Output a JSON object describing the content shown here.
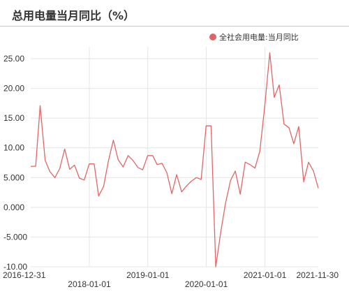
{
  "header": {
    "title": "总用电量当月同比（%）"
  },
  "colors": {
    "series": "#e06666",
    "grid": "#e4e4e4",
    "axis_text": "#333333"
  },
  "chart_data": {
    "type": "line",
    "title": "总用电量当月同比（%）",
    "xlabel": "",
    "ylabel": "",
    "ylim": [
      -10,
      27
    ],
    "grid": true,
    "legend_position": "top-right",
    "y_ticks": [
      "25.00",
      "20.00",
      "15.00",
      "10.00",
      "5.000",
      "0.000",
      "-5.000",
      "-10.00"
    ],
    "x_ticks": [
      {
        "label": "2016-12-31",
        "row": 0
      },
      {
        "label": "2018-01-01",
        "row": 1
      },
      {
        "label": "2019-01-01",
        "row": 0
      },
      {
        "label": "2020-01-01",
        "row": 1
      },
      {
        "label": "2021-01-01",
        "row": 0
      },
      {
        "label": "2021-11-30",
        "row": 0
      }
    ],
    "x_gridlines": [
      "2018-01-01",
      "2019-01-01",
      "2020-01-01",
      "2021-01-01"
    ],
    "series": [
      {
        "name": "全社会用电量:当月同比",
        "x": [
          "2016-12-31",
          "2017-01-31",
          "2017-02-28",
          "2017-03-31",
          "2017-04-30",
          "2017-05-31",
          "2017-06-30",
          "2017-07-31",
          "2017-08-31",
          "2017-09-30",
          "2017-10-31",
          "2017-11-30",
          "2017-12-31",
          "2018-01-31",
          "2018-02-28",
          "2018-03-31",
          "2018-04-30",
          "2018-05-31",
          "2018-06-30",
          "2018-07-31",
          "2018-08-31",
          "2018-09-30",
          "2018-10-31",
          "2018-11-30",
          "2018-12-31",
          "2019-01-31",
          "2019-02-28",
          "2019-03-31",
          "2019-04-30",
          "2019-05-31",
          "2019-06-30",
          "2019-07-31",
          "2019-08-31",
          "2019-09-30",
          "2019-10-31",
          "2019-11-30",
          "2019-12-31",
          "2020-01-31",
          "2020-02-29",
          "2020-03-31",
          "2020-04-30",
          "2020-05-31",
          "2020-06-30",
          "2020-07-31",
          "2020-08-31",
          "2020-09-30",
          "2020-10-31",
          "2020-11-30",
          "2020-12-31",
          "2021-01-31",
          "2021-02-28",
          "2021-03-31",
          "2021-04-30",
          "2021-05-31",
          "2021-06-30",
          "2021-07-31",
          "2021-08-31",
          "2021-09-30",
          "2021-10-31",
          "2021-11-30"
        ],
        "values": [
          6.9,
          6.9,
          17.1,
          7.9,
          6.0,
          5.0,
          6.5,
          9.8,
          6.4,
          7.1,
          4.9,
          4.6,
          7.3,
          7.3,
          1.9,
          3.5,
          7.8,
          11.3,
          8.0,
          6.8,
          8.7,
          7.9,
          6.7,
          6.3,
          8.7,
          8.7,
          7.2,
          7.4,
          5.8,
          2.3,
          5.5,
          2.6,
          3.6,
          4.4,
          5.0,
          4.7,
          13.7,
          13.7,
          -10.0,
          -4.2,
          0.7,
          4.5,
          6.1,
          2.2,
          7.6,
          7.2,
          6.6,
          9.4,
          17.0,
          26.0,
          18.5,
          20.6,
          14.0,
          13.4,
          10.7,
          13.6,
          4.3,
          7.6,
          6.1,
          3.2
        ]
      }
    ]
  }
}
